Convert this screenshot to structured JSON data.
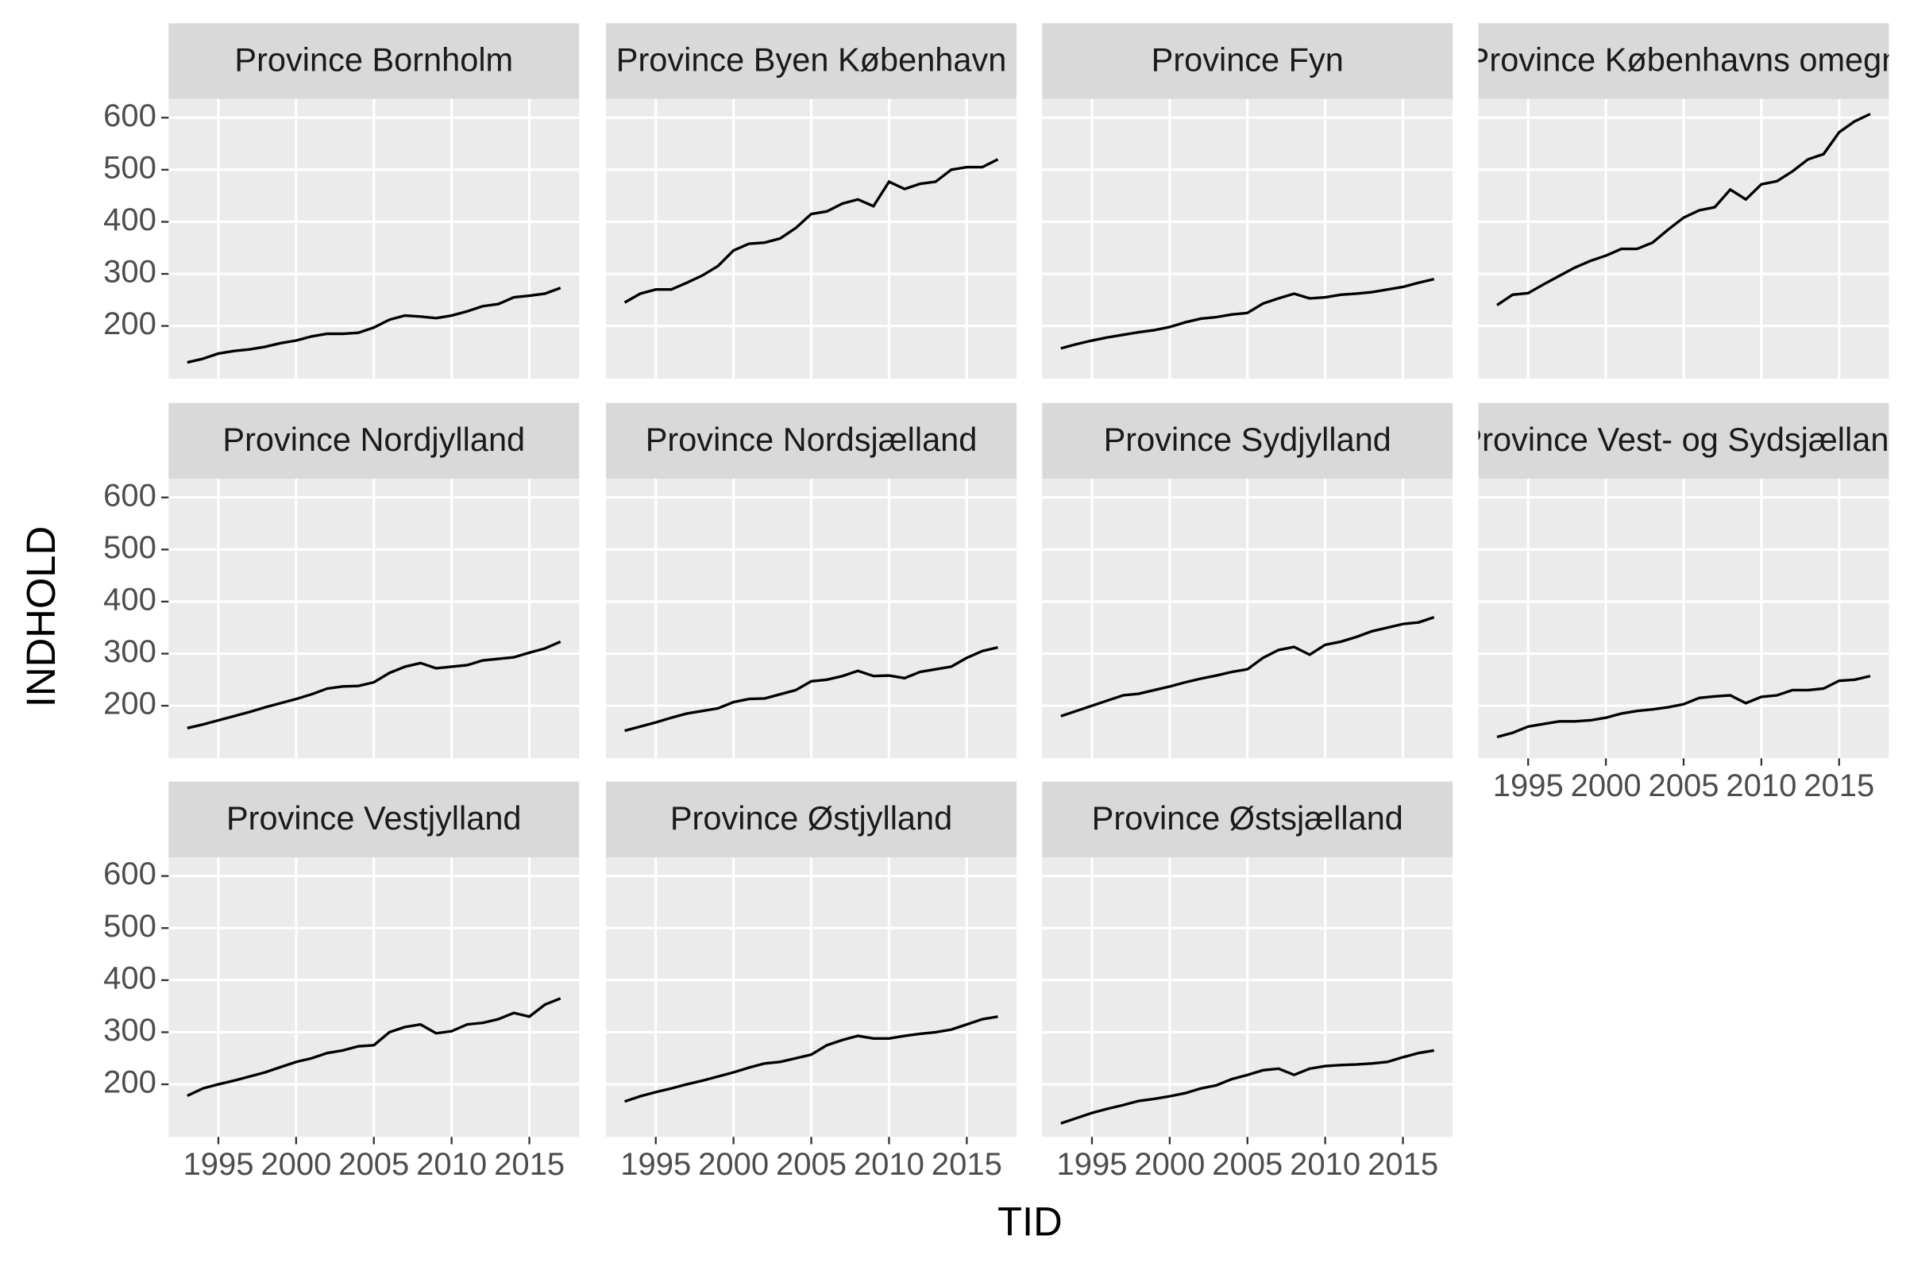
{
  "chart_data": {
    "type": "line",
    "facet": true,
    "ncol": 4,
    "xlabel": "TID",
    "ylabel": "INDHOLD",
    "x": [
      1993,
      1994,
      1995,
      1996,
      1997,
      1998,
      1999,
      2000,
      2001,
      2002,
      2003,
      2004,
      2005,
      2006,
      2007,
      2008,
      2009,
      2010,
      2011,
      2012,
      2013,
      2014,
      2015,
      2016,
      2017
    ],
    "xlim": [
      1991.8,
      2018.2
    ],
    "xticks": [
      1995,
      2000,
      2005,
      2010,
      2015
    ],
    "ylim": [
      99,
      636
    ],
    "yticks": [
      200,
      300,
      400,
      500,
      600
    ],
    "grid": true,
    "color": "#000000",
    "series": [
      {
        "name": "Province Bornholm",
        "values": [
          130,
          137,
          147,
          152,
          155,
          160,
          167,
          172,
          180,
          185,
          185,
          187,
          197,
          212,
          220,
          218,
          215,
          220,
          228,
          238,
          242,
          255,
          258,
          262,
          273
        ]
      },
      {
        "name": "Province Byen København",
        "values": [
          245,
          262,
          270,
          270,
          283,
          297,
          315,
          345,
          358,
          360,
          368,
          388,
          415,
          420,
          435,
          443,
          430,
          477,
          463,
          473,
          477,
          500,
          505,
          505,
          520
        ]
      },
      {
        "name": "Province Fyn",
        "values": [
          157,
          165,
          172,
          178,
          183,
          188,
          192,
          198,
          207,
          214,
          217,
          222,
          225,
          243,
          253,
          262,
          253,
          255,
          260,
          262,
          265,
          270,
          275,
          283,
          290
        ]
      },
      {
        "name": "Province Københavns omegn",
        "values": [
          240,
          260,
          263,
          280,
          296,
          312,
          325,
          335,
          348,
          348,
          360,
          385,
          408,
          422,
          428,
          462,
          443,
          472,
          478,
          497,
          520,
          530,
          572,
          593,
          607
        ]
      },
      {
        "name": "Province Nordjylland",
        "values": [
          157,
          164,
          172,
          180,
          188,
          197,
          205,
          213,
          222,
          233,
          237,
          238,
          245,
          263,
          275,
          282,
          272,
          275,
          278,
          287,
          290,
          293,
          302,
          310,
          323
        ]
      },
      {
        "name": "Province Nordsjælland",
        "values": [
          152,
          160,
          168,
          177,
          185,
          190,
          195,
          207,
          213,
          214,
          222,
          230,
          247,
          250,
          257,
          267,
          257,
          258,
          253,
          265,
          270,
          275,
          292,
          305,
          312
        ]
      },
      {
        "name": "Province Sydjylland",
        "values": [
          180,
          190,
          200,
          210,
          220,
          223,
          230,
          237,
          245,
          252,
          258,
          265,
          270,
          292,
          307,
          313,
          298,
          317,
          323,
          332,
          343,
          350,
          357,
          360,
          370
        ]
      },
      {
        "name": "Province Vest- og Sydsjælland",
        "values": [
          140,
          148,
          160,
          165,
          170,
          170,
          172,
          177,
          185,
          190,
          193,
          197,
          203,
          215,
          218,
          220,
          205,
          217,
          220,
          230,
          230,
          233,
          248,
          250,
          257
        ]
      },
      {
        "name": "Province Vestjylland",
        "values": [
          178,
          192,
          200,
          207,
          215,
          223,
          233,
          243,
          250,
          260,
          265,
          273,
          275,
          300,
          310,
          315,
          298,
          302,
          315,
          318,
          325,
          337,
          330,
          353,
          365
        ]
      },
      {
        "name": "Province Østjylland",
        "values": [
          167,
          177,
          185,
          192,
          200,
          207,
          215,
          223,
          232,
          240,
          243,
          250,
          257,
          275,
          285,
          293,
          288,
          288,
          293,
          297,
          300,
          305,
          315,
          325,
          330
        ]
      },
      {
        "name": "Province Østsjælland",
        "values": [
          125,
          135,
          145,
          153,
          160,
          168,
          172,
          177,
          183,
          192,
          198,
          210,
          218,
          227,
          230,
          218,
          230,
          235,
          237,
          238,
          240,
          243,
          252,
          260,
          265
        ]
      }
    ]
  }
}
